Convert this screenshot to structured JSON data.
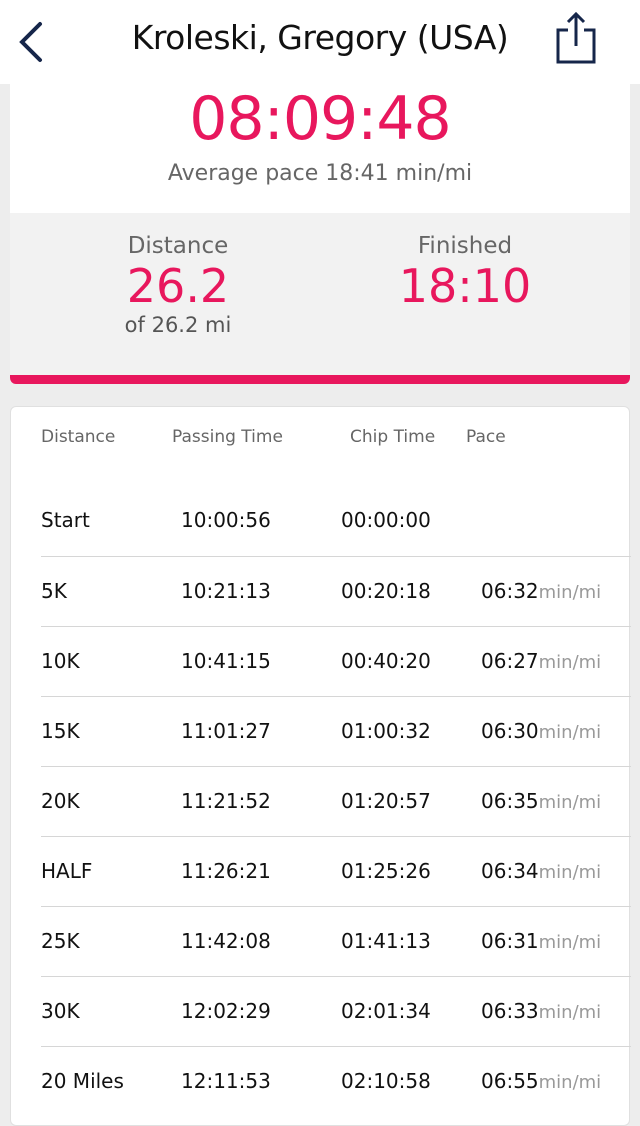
{
  "header": {
    "title": "Kroleski, Gregory (USA)",
    "back_icon": "chevron-left-icon",
    "share_icon": "share-icon"
  },
  "summary": {
    "time": "08:09:48",
    "average_pace": "Average pace 18:41 min/mi",
    "distance_label": "Distance",
    "distance_value": "26.2",
    "distance_sub": "of 26.2 mi",
    "finished_label": "Finished",
    "finished_value": "18:10",
    "accent": "#e8175d"
  },
  "splits": {
    "headers": {
      "distance": "Distance",
      "passing": "Passing Time",
      "chip": "Chip Time",
      "pace": "Pace"
    },
    "unit": "min/mi",
    "rows": [
      {
        "distance": "Start",
        "passing": "10:00:56",
        "chip": "00:00:00",
        "pace": ""
      },
      {
        "distance": "5K",
        "passing": "10:21:13",
        "chip": "00:20:18",
        "pace": "06:32"
      },
      {
        "distance": "10K",
        "passing": "10:41:15",
        "chip": "00:40:20",
        "pace": "06:27"
      },
      {
        "distance": "15K",
        "passing": "11:01:27",
        "chip": "01:00:32",
        "pace": "06:30"
      },
      {
        "distance": "20K",
        "passing": "11:21:52",
        "chip": "01:20:57",
        "pace": "06:35"
      },
      {
        "distance": "HALF",
        "passing": "11:26:21",
        "chip": "01:25:26",
        "pace": "06:34"
      },
      {
        "distance": "25K",
        "passing": "11:42:08",
        "chip": "01:41:13",
        "pace": "06:31"
      },
      {
        "distance": "30K",
        "passing": "12:02:29",
        "chip": "02:01:34",
        "pace": "06:33"
      },
      {
        "distance": "20 Miles",
        "passing": "12:11:53",
        "chip": "02:10:58",
        "pace": "06:55"
      }
    ]
  }
}
